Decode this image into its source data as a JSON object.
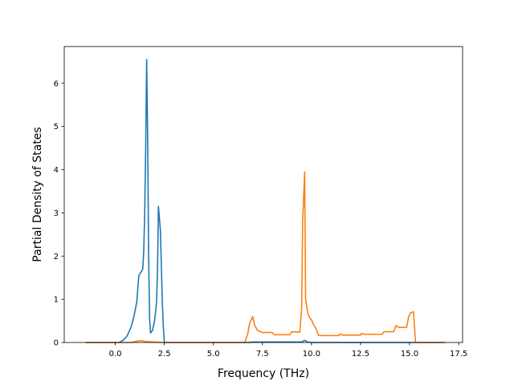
{
  "chart_data": {
    "type": "line",
    "title": "",
    "xlabel": "Frequency (THz)",
    "ylabel": "Partial Density of States",
    "xlim": [
      -2.6,
      17.7
    ],
    "ylim": [
      0,
      6.85
    ],
    "xticks": [
      0.0,
      2.5,
      5.0,
      7.5,
      10.0,
      12.5,
      15.0,
      17.5
    ],
    "xtick_labels": [
      "0.0",
      "2.5",
      "5.0",
      "7.5",
      "10.0",
      "12.5",
      "15.0",
      "17.5"
    ],
    "yticks": [
      0,
      1,
      2,
      3,
      4,
      5,
      6
    ],
    "ytick_labels": [
      "0",
      "1",
      "2",
      "3",
      "4",
      "5",
      "6"
    ],
    "grid": false,
    "legend": "none",
    "series": [
      {
        "color": "#1f77b4",
        "points": [
          [
            -1.5,
            0
          ],
          [
            0.2,
            0
          ],
          [
            0.4,
            0.05
          ],
          [
            0.6,
            0.15
          ],
          [
            0.8,
            0.35
          ],
          [
            0.95,
            0.6
          ],
          [
            1.1,
            0.95
          ],
          [
            1.2,
            1.55
          ],
          [
            1.3,
            1.62
          ],
          [
            1.4,
            1.7
          ],
          [
            1.45,
            2.1
          ],
          [
            1.5,
            3.0
          ],
          [
            1.55,
            4.5
          ],
          [
            1.6,
            6.55
          ],
          [
            1.65,
            4.8
          ],
          [
            1.7,
            2.0
          ],
          [
            1.75,
            0.55
          ],
          [
            1.8,
            0.22
          ],
          [
            1.9,
            0.28
          ],
          [
            2.0,
            0.5
          ],
          [
            2.1,
            0.9
          ],
          [
            2.15,
            1.6
          ],
          [
            2.2,
            3.15
          ],
          [
            2.3,
            2.6
          ],
          [
            2.4,
            0.9
          ],
          [
            2.45,
            0.35
          ],
          [
            2.5,
            0.0
          ],
          [
            6.8,
            0.0
          ],
          [
            7.0,
            0.01
          ],
          [
            9.5,
            0.01
          ],
          [
            9.65,
            0.05
          ],
          [
            9.8,
            0.01
          ],
          [
            10.0,
            0.0
          ],
          [
            16.8,
            0.0
          ]
        ]
      },
      {
        "color": "#ff7f0e",
        "points": [
          [
            -1.5,
            0
          ],
          [
            0.8,
            0
          ],
          [
            1.0,
            0.02
          ],
          [
            1.3,
            0.04
          ],
          [
            1.6,
            0.02
          ],
          [
            2.0,
            0.01
          ],
          [
            2.4,
            0.0
          ],
          [
            6.6,
            0.0
          ],
          [
            6.75,
            0.2
          ],
          [
            6.85,
            0.45
          ],
          [
            7.0,
            0.6
          ],
          [
            7.1,
            0.4
          ],
          [
            7.25,
            0.28
          ],
          [
            7.5,
            0.23
          ],
          [
            8.0,
            0.23
          ],
          [
            8.1,
            0.18
          ],
          [
            8.9,
            0.18
          ],
          [
            9.0,
            0.25
          ],
          [
            9.4,
            0.24
          ],
          [
            9.5,
            0.8
          ],
          [
            9.55,
            2.8
          ],
          [
            9.65,
            3.95
          ],
          [
            9.7,
            1.0
          ],
          [
            9.8,
            0.7
          ],
          [
            9.9,
            0.58
          ],
          [
            10.0,
            0.52
          ],
          [
            10.1,
            0.42
          ],
          [
            10.25,
            0.3
          ],
          [
            10.35,
            0.17
          ],
          [
            10.5,
            0.16
          ],
          [
            11.4,
            0.16
          ],
          [
            11.45,
            0.2
          ],
          [
            11.6,
            0.17
          ],
          [
            12.5,
            0.17
          ],
          [
            12.55,
            0.21
          ],
          [
            12.7,
            0.19
          ],
          [
            13.6,
            0.19
          ],
          [
            13.7,
            0.25
          ],
          [
            14.2,
            0.25
          ],
          [
            14.3,
            0.39
          ],
          [
            14.45,
            0.35
          ],
          [
            14.85,
            0.35
          ],
          [
            14.95,
            0.6
          ],
          [
            15.05,
            0.69
          ],
          [
            15.2,
            0.71
          ],
          [
            15.3,
            0.0
          ],
          [
            16.7,
            0.0
          ]
        ]
      }
    ]
  }
}
